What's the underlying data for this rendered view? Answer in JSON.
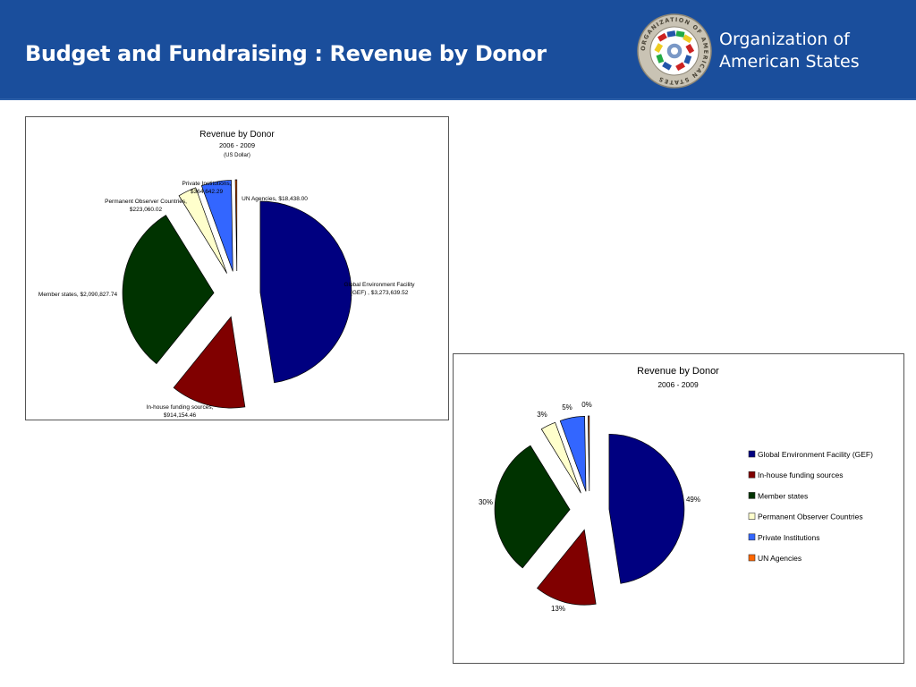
{
  "header": {
    "title": "Budget and Fundraising : Revenue by Donor",
    "org_line1": "Organization of",
    "org_line2": "American States",
    "colors": {
      "background": "#1a4e9c",
      "text": "#ffffff"
    }
  },
  "logo": {
    "icon": "oas-seal-icon",
    "ring_text": "ORGANIZATION OF AMERICAN STATES"
  },
  "chart_data": [
    {
      "type": "pie",
      "title": "Revenue by Donor",
      "subtitle": "2006 - 2009",
      "unit_note": "(US Dollar)",
      "exploded": true,
      "label_style": "value",
      "slices": [
        {
          "label_line1": "Global Environment Facility",
          "label_line2": "(GEF) , $3,273,639.52",
          "value": 3273639.52,
          "color": "#000080"
        },
        {
          "label_line1": "In-house funding sources,",
          "label_line2": "$914,154.46",
          "value": 914154.46,
          "color": "#800000"
        },
        {
          "label_line1": "Member states,  $2,090,827.74",
          "label_line2": "",
          "value": 2090827.74,
          "color": "#003300"
        },
        {
          "label_line1": "Permanent Observer Countries,",
          "label_line2": "$223,060.02",
          "value": 223060.02,
          "color": "#ffffcc"
        },
        {
          "label_line1": "Private Institutions,",
          "label_line2": "$364,642.29",
          "value": 364642.29,
          "color": "#3366ff"
        },
        {
          "label_line1": "UN Agencies,  $18,438.00",
          "label_line2": "",
          "value": 18438.0,
          "color": "#ff6600"
        }
      ]
    },
    {
      "type": "pie",
      "title": "Revenue by Donor",
      "subtitle": "2006 - 2009",
      "exploded": true,
      "label_style": "percent",
      "legend_position": "right",
      "slices": [
        {
          "name": "Global Environment Facility (GEF)",
          "percent_label": "49%",
          "value": 3273639.52,
          "color": "#000080"
        },
        {
          "name": "In-house funding sources",
          "percent_label": "13%",
          "value": 914154.46,
          "color": "#800000"
        },
        {
          "name": "Member states",
          "percent_label": "30%",
          "value": 2090827.74,
          "color": "#003300"
        },
        {
          "name": "Permanent Observer Countries",
          "percent_label": "3%",
          "value": 223060.02,
          "color": "#ffffcc"
        },
        {
          "name": "Private Institutions",
          "percent_label": "5%",
          "value": 364642.29,
          "color": "#3366ff"
        },
        {
          "name": "UN Agencies",
          "percent_label": "0%",
          "value": 18438.0,
          "color": "#ff6600"
        }
      ]
    }
  ]
}
